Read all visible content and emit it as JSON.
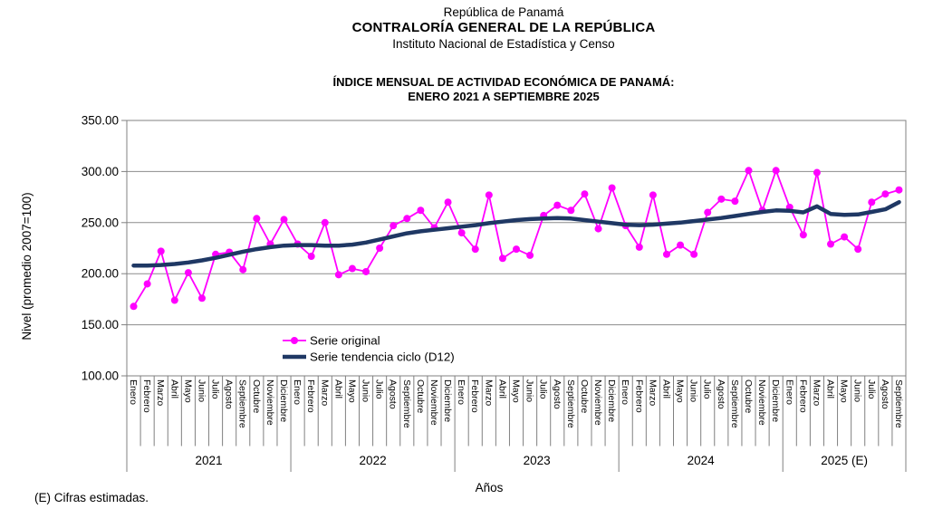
{
  "header": {
    "line1": "República de Panamá",
    "line2": "CONTRALORÍA GENERAL DE LA REPÚBLICA",
    "line3": "Instituto Nacional de Estadística y Censo",
    "title_line1": "ÍNDICE MENSUAL DE ACTIVIDAD ECONÓMICA DE PANAMÁ:",
    "title_line2": "ENERO 2021 A SEPTIEMBRE 2025"
  },
  "footnote": "(E) Cifras estimadas.",
  "chart_data": {
    "type": "line",
    "title": "ÍNDICE MENSUAL DE ACTIVIDAD ECONÓMICA DE PANAMÁ: ENERO 2021 A SEPTIEMBRE 2025",
    "xlabel": "Años",
    "ylabel": "Nivel (promedio  2007=100)",
    "ylim": [
      100,
      350
    ],
    "yticks": [
      100,
      150,
      200,
      250,
      300,
      350
    ],
    "ytick_labels": [
      "100.00",
      "150.00",
      "200.00",
      "250.00",
      "300.00",
      "350.00"
    ],
    "grid": true,
    "legend_position": "inside-lower-left",
    "month_names": [
      "Enero",
      "Febrero",
      "Marzo",
      "Abril",
      "Mayo",
      "Junio",
      "Julio",
      "Agosto",
      "Septiembre",
      "Octubre",
      "Noviembre",
      "Diciembre"
    ],
    "year_groups": [
      {
        "label": "2021",
        "month_count": 12
      },
      {
        "label": "2022",
        "month_count": 12
      },
      {
        "label": "2023",
        "month_count": 12
      },
      {
        "label": "2024",
        "month_count": 12
      },
      {
        "label": "2025 (E)",
        "month_count": 9
      }
    ],
    "colors": {
      "original": "#FF00FF",
      "trend": "#1F3864",
      "grid": "#8C8C8C",
      "axis": "#808080",
      "text": "#000000"
    },
    "series": [
      {
        "name": "Serie original",
        "color": "#FF00FF",
        "marker": "circle",
        "line_width": 1.8,
        "values": [
          168,
          190,
          222,
          174,
          201,
          176,
          219,
          221,
          204,
          254,
          229,
          253,
          229,
          217,
          250,
          199,
          205,
          202,
          225,
          247,
          254,
          262,
          245,
          270,
          240,
          224,
          277,
          215,
          224,
          218,
          257,
          267,
          262,
          278,
          244,
          284,
          247,
          226,
          277,
          219,
          228,
          219,
          260,
          273,
          271,
          301,
          262,
          301,
          265,
          238,
          299,
          229,
          236,
          224,
          270,
          278,
          282
        ]
      },
      {
        "name": "Serie tendencia ciclo (D12)",
        "color": "#1F3864",
        "marker": "none",
        "line_width": 4.5,
        "values": [
          208,
          208,
          208.5,
          209.5,
          211,
          213,
          215.5,
          218.5,
          221.5,
          224,
          226,
          227.5,
          228,
          228,
          227.5,
          227.5,
          228.5,
          230.5,
          233.5,
          236.5,
          239.5,
          241.5,
          243,
          244.5,
          246,
          247.5,
          249.5,
          251,
          252.5,
          253.5,
          254,
          254.5,
          254,
          252.5,
          251,
          249.5,
          248,
          247.5,
          248,
          249,
          250,
          251.5,
          253,
          254.5,
          256.5,
          258.5,
          260.5,
          262,
          261.5,
          260,
          266,
          258.5,
          257.5,
          258,
          260.5,
          263,
          270
        ]
      }
    ]
  }
}
